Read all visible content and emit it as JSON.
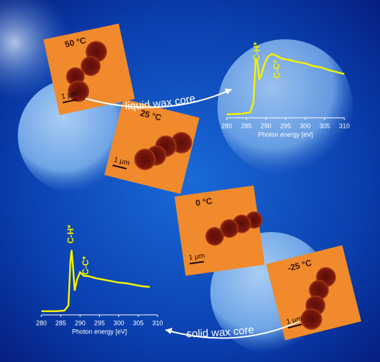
{
  "chart_data": [
    {
      "type": "line",
      "xlabel": "Photon energy [eV]",
      "annotations": [
        "C-H*",
        "C-C*"
      ],
      "xlim": [
        280,
        310
      ],
      "xticks": [
        280,
        285,
        290,
        295,
        300,
        305,
        310
      ],
      "ylim": [
        0,
        1
      ],
      "color": "#f4f200",
      "x": [
        280,
        284,
        286,
        286.8,
        287.4,
        287.8,
        288.3,
        288.8,
        289.5,
        290.5,
        291.5,
        292.5,
        294,
        296,
        298,
        300,
        302,
        304,
        306,
        308,
        310
      ],
      "values": [
        0.02,
        0.03,
        0.05,
        0.2,
        0.85,
        0.8,
        0.55,
        0.6,
        0.75,
        0.88,
        0.92,
        0.9,
        0.85,
        0.83,
        0.8,
        0.78,
        0.74,
        0.72,
        0.68,
        0.65,
        0.62
      ]
    },
    {
      "type": "line",
      "xlabel": "Photon energy [eV]",
      "annotations": [
        "C-H*",
        "C-C*"
      ],
      "xlim": [
        280,
        310
      ],
      "xticks": [
        280,
        285,
        290,
        295,
        300,
        305,
        310
      ],
      "ylim": [
        0,
        1
      ],
      "color": "#f4f200",
      "x": [
        280,
        284,
        286,
        287,
        287.5,
        287.8,
        288.2,
        288.6,
        289.2,
        290,
        291,
        292,
        294,
        296,
        298,
        300,
        302,
        304,
        306,
        308
      ],
      "values": [
        0.02,
        0.02,
        0.03,
        0.1,
        0.7,
        0.85,
        0.6,
        0.3,
        0.45,
        0.55,
        0.5,
        0.5,
        0.47,
        0.45,
        0.43,
        0.41,
        0.4,
        0.38,
        0.36,
        0.35
      ]
    }
  ],
  "panels": [
    {
      "temperature": "50 °C",
      "scale": "1 µm"
    },
    {
      "temperature": "25 °C",
      "scale": "1 µm"
    },
    {
      "temperature": "0 °C",
      "scale": "1 µm"
    },
    {
      "temperature": "-25 °C",
      "scale": "1 µm"
    }
  ],
  "arrows": [
    "liquid wax core",
    "solid wax core"
  ]
}
